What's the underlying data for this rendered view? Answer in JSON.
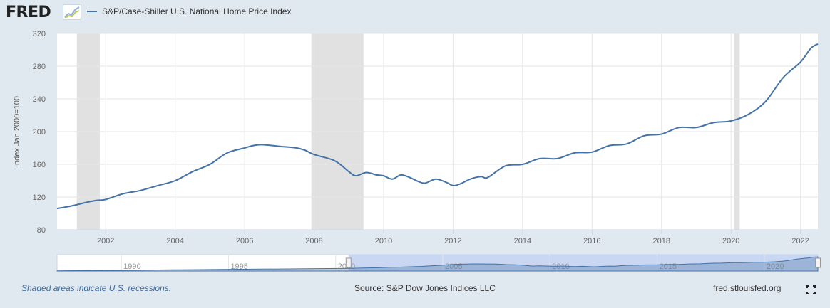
{
  "header": {
    "logo_text": "FRED",
    "legend_label": "S&P/Case-Shiller U.S. National Home Price Index",
    "series_color": "#4572a7"
  },
  "footer": {
    "recession_note": "Shaded areas indicate U.S. recessions.",
    "source": "Source: S&P Dow Jones Indices LLC",
    "site": "fred.stlouisfed.org",
    "fullscreen_icon": "fullscreen-icon"
  },
  "chart_data": {
    "type": "line",
    "ylabel": "Index Jan 2000=100",
    "xlim": [
      2000.6,
      2022.5
    ],
    "ylim": [
      80,
      320
    ],
    "y_ticks": [
      80,
      120,
      160,
      200,
      240,
      280,
      320
    ],
    "x_ticks": [
      2002,
      2004,
      2006,
      2008,
      2010,
      2012,
      2014,
      2016,
      2018,
      2020,
      2022
    ],
    "grid": true,
    "recessions": [
      [
        2001.17,
        2001.83
      ],
      [
        2007.92,
        2009.42
      ],
      [
        2020.08,
        2020.25
      ]
    ],
    "series": [
      {
        "x": [
          2000.6,
          2001.0,
          2001.5,
          2001.75,
          2002.0,
          2002.5,
          2003.0,
          2003.5,
          2004.0,
          2004.5,
          2005.0,
          2005.5,
          2006.0,
          2006.25,
          2006.5,
          2007.0,
          2007.5,
          2007.75,
          2008.0,
          2008.5,
          2008.75,
          2009.0,
          2009.2,
          2009.5,
          2009.8,
          2010.0,
          2010.25,
          2010.5,
          2010.75,
          2011.0,
          2011.2,
          2011.5,
          2011.8,
          2012.0,
          2012.2,
          2012.5,
          2012.8,
          2013.0,
          2013.5,
          2014.0,
          2014.5,
          2015.0,
          2015.5,
          2016.0,
          2016.5,
          2017.0,
          2017.5,
          2018.0,
          2018.5,
          2019.0,
          2019.5,
          2020.0,
          2020.5,
          2021.0,
          2021.5,
          2022.0,
          2022.3,
          2022.5
        ],
        "values": [
          106,
          109,
          114,
          116,
          117,
          124,
          128,
          134,
          140,
          151,
          160,
          174,
          180,
          183,
          184,
          182,
          180,
          177,
          172,
          166,
          160,
          151,
          146,
          150,
          147,
          146,
          142,
          147,
          144,
          139,
          137,
          142,
          138,
          134,
          136,
          142,
          145,
          144,
          158,
          160,
          167,
          167,
          174,
          175,
          183,
          185,
          195,
          197,
          205,
          205,
          211,
          213,
          221,
          237,
          266,
          285,
          302,
          307
        ]
      }
    ],
    "navigator": {
      "x_ticks": [
        1990,
        1995,
        2000,
        2005,
        2010,
        2015,
        2020
      ],
      "xlim": [
        1987,
        2022.5
      ],
      "selected_range": [
        2000.6,
        2022.5
      ]
    }
  }
}
